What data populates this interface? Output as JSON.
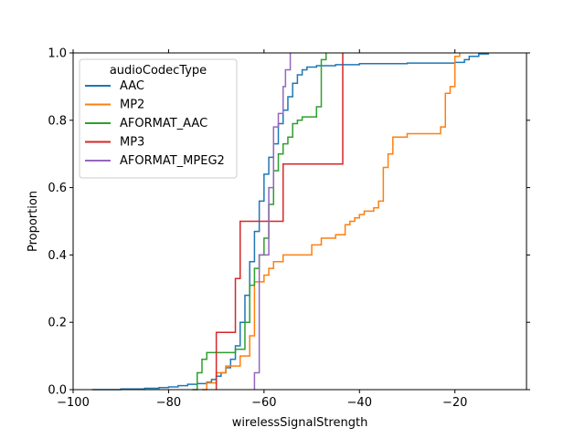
{
  "chart_data": {
    "type": "line",
    "subtype": "ecdf-step",
    "xlabel": "wirelessSignalStrength",
    "ylabel": "Proportion",
    "xlim": [
      -100,
      -5
    ],
    "ylim": [
      0,
      1
    ],
    "xticks": [
      -100,
      -80,
      -60,
      -40,
      -20
    ],
    "yticks": [
      0.0,
      0.2,
      0.4,
      0.6,
      0.8,
      1.0
    ],
    "xtick_labels": [
      "−100",
      "−80",
      "−60",
      "−40",
      "−20"
    ],
    "ytick_labels": [
      "0.0",
      "0.2",
      "0.4",
      "0.6",
      "0.8",
      "1.0"
    ],
    "grid": false,
    "legend": {
      "title": "audioCodecType",
      "placement": "top-left",
      "entries": [
        "AAC",
        "MP2",
        "AFORMAT_AAC",
        "MP3",
        "AFORMAT_MPEG2"
      ]
    },
    "series": [
      {
        "name": "AAC",
        "color": "#1f77b4",
        "points": [
          [
            -96,
            0.0
          ],
          [
            -90,
            0.002
          ],
          [
            -85,
            0.004
          ],
          [
            -82,
            0.006
          ],
          [
            -80,
            0.008
          ],
          [
            -78,
            0.012
          ],
          [
            -76,
            0.016
          ],
          [
            -74,
            0.018
          ],
          [
            -72,
            0.022
          ],
          [
            -71,
            0.03
          ],
          [
            -70,
            0.04
          ],
          [
            -69,
            0.05
          ],
          [
            -68,
            0.065
          ],
          [
            -67,
            0.09
          ],
          [
            -66,
            0.13
          ],
          [
            -65,
            0.2
          ],
          [
            -64,
            0.28
          ],
          [
            -63,
            0.38
          ],
          [
            -62,
            0.47
          ],
          [
            -61,
            0.56
          ],
          [
            -60,
            0.64
          ],
          [
            -59,
            0.69
          ],
          [
            -58,
            0.73
          ],
          [
            -57,
            0.79
          ],
          [
            -56,
            0.83
          ],
          [
            -55,
            0.87
          ],
          [
            -54,
            0.91
          ],
          [
            -53,
            0.935
          ],
          [
            -52,
            0.95
          ],
          [
            -51,
            0.958
          ],
          [
            -49,
            0.962
          ],
          [
            -45,
            0.965
          ],
          [
            -40,
            0.968
          ],
          [
            -30,
            0.97
          ],
          [
            -20,
            0.972
          ],
          [
            -18,
            0.98
          ],
          [
            -17,
            0.99
          ],
          [
            -15,
            0.997
          ],
          [
            -13,
            1.0
          ]
        ]
      },
      {
        "name": "MP2",
        "color": "#ff7f0e",
        "points": [
          [
            -73,
            0.0
          ],
          [
            -72,
            0.02
          ],
          [
            -70,
            0.05
          ],
          [
            -68,
            0.07
          ],
          [
            -65,
            0.1
          ],
          [
            -63,
            0.16
          ],
          [
            -62,
            0.32
          ],
          [
            -60,
            0.34
          ],
          [
            -59,
            0.36
          ],
          [
            -58,
            0.38
          ],
          [
            -56,
            0.4
          ],
          [
            -50,
            0.43
          ],
          [
            -48,
            0.45
          ],
          [
            -45,
            0.46
          ],
          [
            -43,
            0.49
          ],
          [
            -42,
            0.5
          ],
          [
            -41,
            0.51
          ],
          [
            -40,
            0.52
          ],
          [
            -39,
            0.53
          ],
          [
            -37,
            0.54
          ],
          [
            -36,
            0.56
          ],
          [
            -35,
            0.66
          ],
          [
            -34,
            0.7
          ],
          [
            -33,
            0.75
          ],
          [
            -30,
            0.76
          ],
          [
            -23,
            0.78
          ],
          [
            -22,
            0.88
          ],
          [
            -21,
            0.9
          ],
          [
            -20,
            0.99
          ],
          [
            -19,
            1.0
          ]
        ]
      },
      {
        "name": "AFORMAT_AAC",
        "color": "#2ca02c",
        "points": [
          [
            -75,
            0.0
          ],
          [
            -74,
            0.05
          ],
          [
            -73,
            0.09
          ],
          [
            -72,
            0.11
          ],
          [
            -66,
            0.12
          ],
          [
            -64,
            0.2
          ],
          [
            -63,
            0.31
          ],
          [
            -62,
            0.36
          ],
          [
            -61,
            0.4
          ],
          [
            -60,
            0.45
          ],
          [
            -59,
            0.55
          ],
          [
            -58,
            0.65
          ],
          [
            -57,
            0.7
          ],
          [
            -56,
            0.73
          ],
          [
            -55,
            0.75
          ],
          [
            -54,
            0.79
          ],
          [
            -53,
            0.8
          ],
          [
            -52,
            0.81
          ],
          [
            -49,
            0.84
          ],
          [
            -48,
            0.98
          ],
          [
            -47,
            1.0
          ]
        ]
      },
      {
        "name": "MP3",
        "color": "#d62728",
        "points": [
          [
            -70,
            0.0
          ],
          [
            -70,
            0.17
          ],
          [
            -66,
            0.33
          ],
          [
            -65,
            0.5
          ],
          [
            -57,
            0.5
          ],
          [
            -56,
            0.67
          ],
          [
            -43.5,
            0.67
          ],
          [
            -43.5,
            1.0
          ]
        ]
      },
      {
        "name": "AFORMAT_MPEG2",
        "color": "#9467bd",
        "points": [
          [
            -62,
            0.0
          ],
          [
            -62,
            0.05
          ],
          [
            -61,
            0.4
          ],
          [
            -59,
            0.6
          ],
          [
            -58,
            0.78
          ],
          [
            -57,
            0.82
          ],
          [
            -56,
            0.9
          ],
          [
            -55.5,
            0.95
          ],
          [
            -54.5,
            1.0
          ]
        ]
      }
    ]
  }
}
